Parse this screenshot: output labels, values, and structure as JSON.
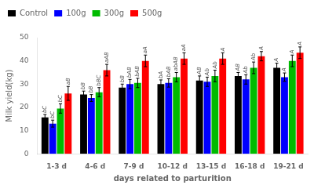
{
  "chart_data": {
    "type": "bar",
    "categories": [
      "1-3 d",
      "4-6 d",
      "7-9 d",
      "10-12 d",
      "13-15 d",
      "16-18 d",
      "19-21 d"
    ],
    "series": [
      {
        "name": "Control",
        "color": "#000000",
        "values": [
          15.7,
          25.5,
          28.5,
          30.0,
          31.5,
          33.5,
          37.0
        ],
        "errors": [
          1.2,
          1.5,
          1.5,
          1.8,
          2.0,
          1.5,
          2.0
        ],
        "annotations": [
          "bC",
          "bB",
          "bB",
          "bA",
          "AB",
          "AB",
          "A"
        ]
      },
      {
        "name": "100g",
        "color": "#0000FF",
        "values": [
          13.0,
          24.0,
          30.0,
          30.5,
          31.0,
          32.0,
          33.0
        ],
        "errors": [
          1.5,
          1.5,
          2.0,
          1.8,
          2.0,
          2.0,
          1.8
        ],
        "annotations": [
          "bC",
          "bB",
          "bAB",
          "bAB",
          "Ab",
          "Ab",
          "A"
        ]
      },
      {
        "name": "300g",
        "color": "#00BB00",
        "values": [
          19.5,
          26.5,
          30.5,
          33.0,
          33.5,
          37.0,
          40.0
        ],
        "errors": [
          2.0,
          2.0,
          2.0,
          2.0,
          2.5,
          2.5,
          2.5
        ],
        "annotations": [
          "bC",
          "bBC",
          "bAB",
          "abAB",
          "Ab",
          "Ab",
          "A"
        ]
      },
      {
        "name": "500g",
        "color": "#FF0000",
        "values": [
          26.0,
          36.0,
          40.0,
          41.0,
          41.0,
          42.0,
          43.5
        ],
        "errors": [
          3.0,
          2.5,
          2.5,
          2.5,
          2.5,
          2.0,
          2.5
        ],
        "annotations": [
          "aB",
          "aAB",
          "aA",
          "aA",
          "A",
          "A",
          "A"
        ]
      }
    ],
    "xlabel": "days related to parturition",
    "ylabel": "Milk yield(kg)",
    "ylim": [
      0,
      50
    ],
    "yticks": [
      0,
      10,
      20,
      30,
      40,
      50
    ],
    "grid": false,
    "legend": "upper left"
  }
}
